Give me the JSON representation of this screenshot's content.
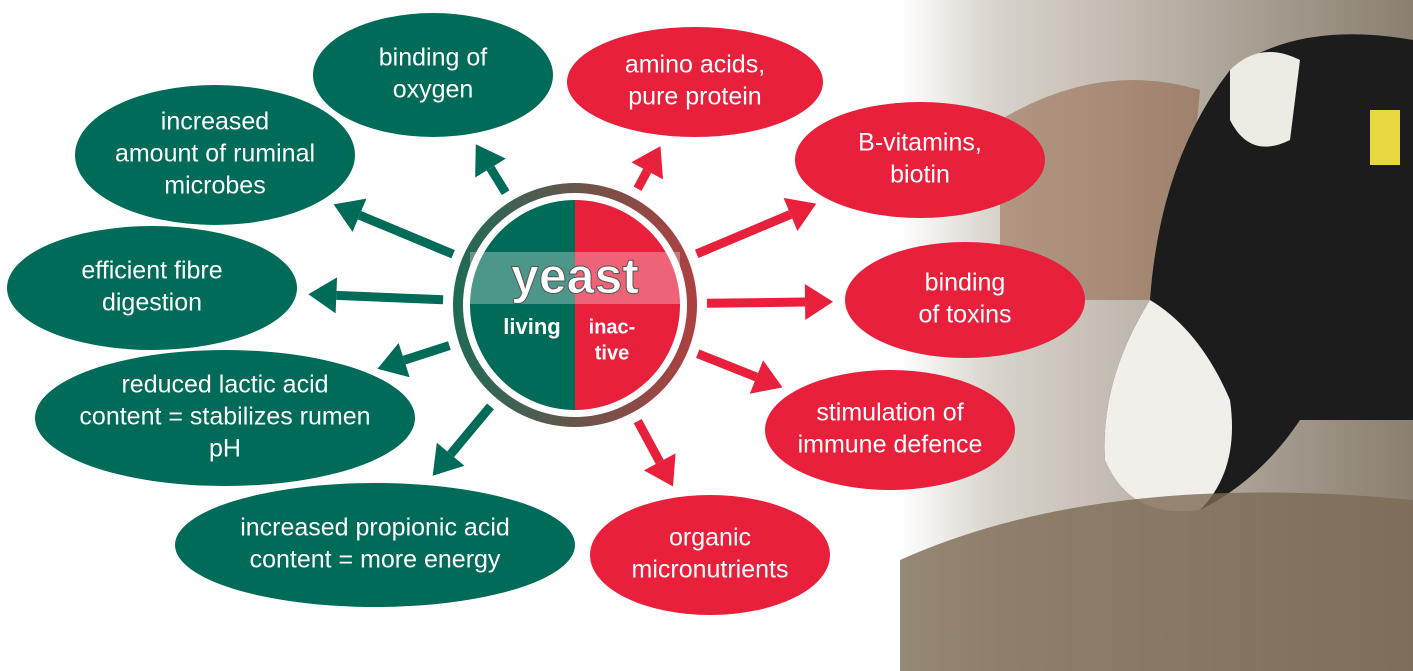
{
  "center": {
    "title": "yeast",
    "left": "living",
    "right": [
      "inac-",
      "tive"
    ]
  },
  "living_nodes": [
    {
      "lines": [
        "binding of",
        "oxygen"
      ]
    },
    {
      "lines": [
        "increased",
        "amount of ruminal",
        "microbes"
      ]
    },
    {
      "lines": [
        "efficient fibre",
        "digestion"
      ]
    },
    {
      "lines": [
        "reduced lactic acid",
        "content = stabilizes rumen",
        "pH"
      ]
    },
    {
      "lines": [
        "increased propionic acid",
        "content = more energy"
      ]
    }
  ],
  "inactive_nodes": [
    {
      "lines": [
        "amino acids,",
        "pure protein"
      ]
    },
    {
      "lines": [
        "B-vitamins,",
        "biotin"
      ]
    },
    {
      "lines": [
        "binding",
        "of toxins"
      ]
    },
    {
      "lines": [
        "stimulation of",
        "immune defence"
      ]
    },
    {
      "lines": [
        "organic",
        "micronutrients"
      ]
    }
  ]
}
